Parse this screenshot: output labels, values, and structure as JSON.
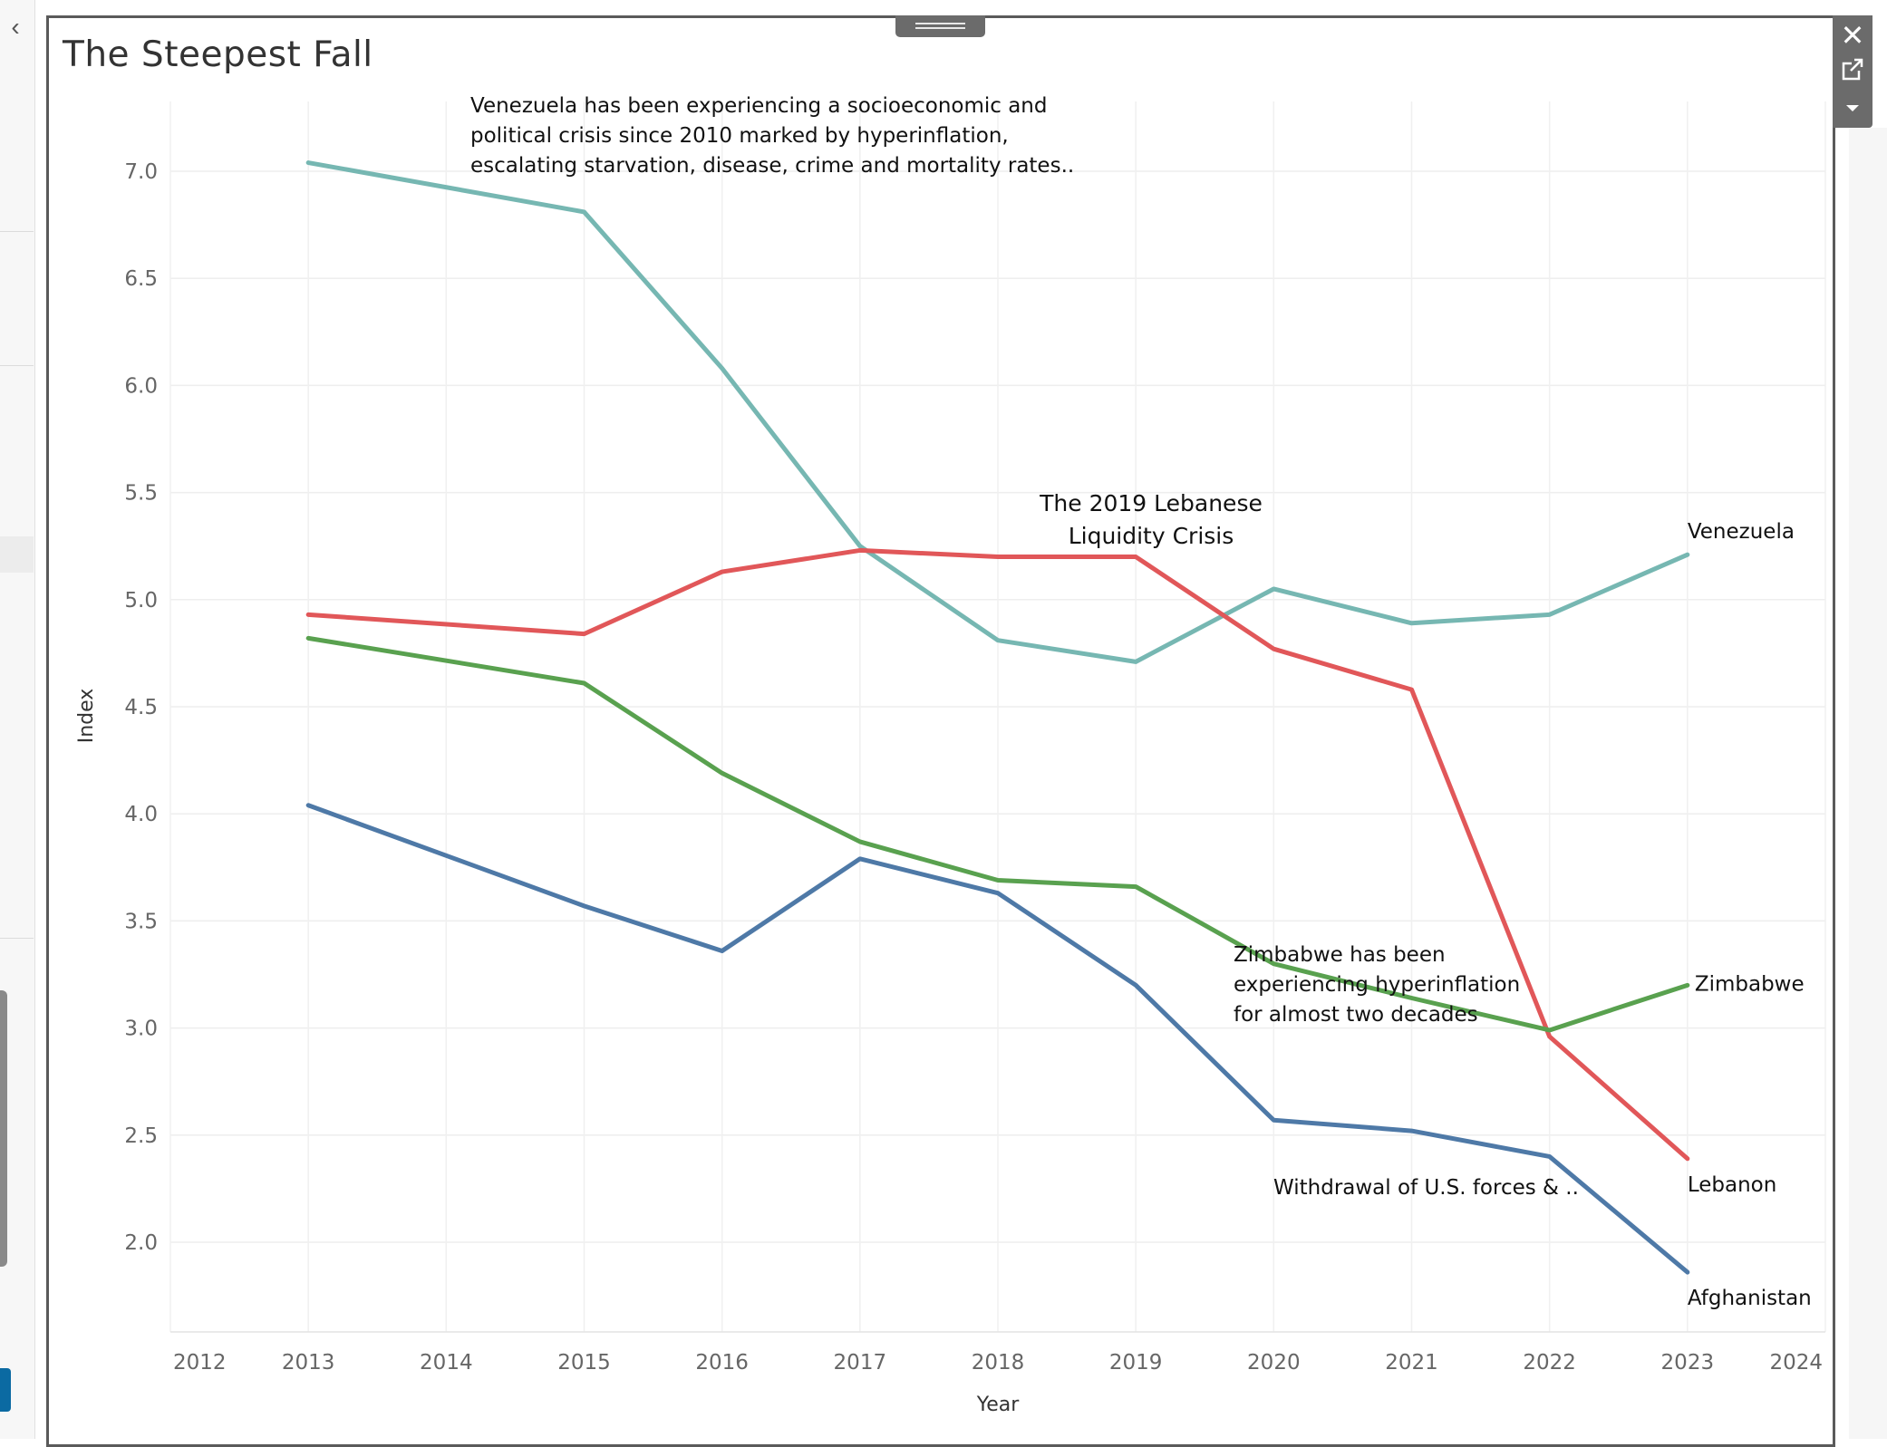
{
  "toolbar": {
    "back_icon": "chevron-left-icon",
    "close_icon": "close-icon",
    "open_icon": "external-link-icon",
    "menu_icon": "caret-down-icon"
  },
  "chart_data": {
    "type": "line",
    "title": "The Steepest Fall",
    "xlabel": "Year",
    "ylabel": "Index",
    "x_ticks": [
      "2012",
      "2013",
      "2014",
      "2015",
      "2016",
      "2017",
      "2018",
      "2019",
      "2020",
      "2021",
      "2022",
      "2023",
      "2024"
    ],
    "y_ticks": [
      "2.0",
      "2.5",
      "3.0",
      "3.5",
      "4.0",
      "4.5",
      "5.0",
      "5.5",
      "6.0",
      "6.5",
      "7.0"
    ],
    "xlim": [
      2012,
      2024
    ],
    "ylim": [
      1.6,
      7.3
    ],
    "grid": true,
    "series": [
      {
        "name": "Venezuela",
        "color": "#76b7b2",
        "x": [
          2013,
          2015,
          2016,
          2017,
          2018,
          2019,
          2020,
          2021,
          2022,
          2023
        ],
        "y": [
          7.04,
          6.81,
          6.08,
          5.25,
          4.81,
          4.71,
          5.05,
          4.89,
          4.93,
          5.21
        ]
      },
      {
        "name": "Lebanon",
        "color": "#e15759",
        "x": [
          2013,
          2015,
          2016,
          2017,
          2018,
          2019,
          2020,
          2021,
          2022,
          2023
        ],
        "y": [
          4.93,
          4.84,
          5.13,
          5.23,
          5.2,
          5.2,
          4.77,
          4.58,
          2.96,
          2.39
        ]
      },
      {
        "name": "Zimbabwe",
        "color": "#59a14f",
        "x": [
          2013,
          2015,
          2016,
          2017,
          2018,
          2019,
          2020,
          2021,
          2022,
          2023
        ],
        "y": [
          4.82,
          4.61,
          4.19,
          3.87,
          3.69,
          3.66,
          3.3,
          3.14,
          2.99,
          3.2
        ]
      },
      {
        "name": "Afghanistan",
        "color": "#4e79a7",
        "x": [
          2013,
          2015,
          2016,
          2017,
          2018,
          2019,
          2020,
          2021,
          2022,
          2023
        ],
        "y": [
          4.04,
          3.57,
          3.36,
          3.79,
          3.63,
          3.2,
          2.57,
          2.52,
          2.4,
          1.86
        ]
      }
    ],
    "annotations": {
      "venezuela": [
        "Venezuela has been experiencing a socioeconomic and",
        "political crisis since 2010 marked by hyperinflation,",
        "escalating starvation, disease, crime and mortality rates.."
      ],
      "lebanon": [
        "The 2019 Lebanese",
        "Liquidity Crisis"
      ],
      "zimbabwe": [
        "Zimbabwe has been",
        "experiencing hyperinflation",
        "for almost two decades"
      ],
      "afghanistan": [
        "Withdrawal of U.S. forces & .."
      ]
    }
  }
}
